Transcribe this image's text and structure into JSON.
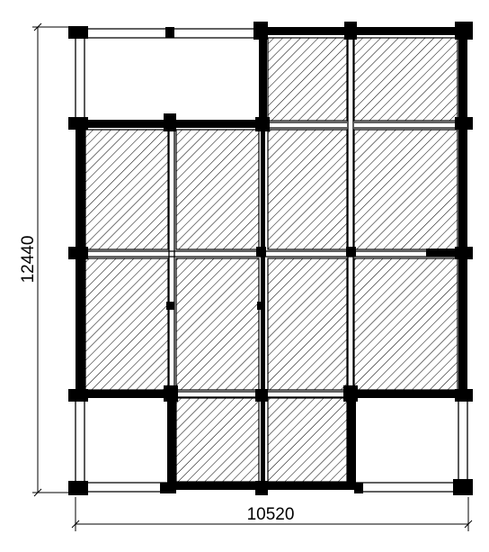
{
  "drawing": {
    "type": "floor-plan",
    "fill_pattern": "diagonal-hatch",
    "colors": {
      "line": "#000000",
      "background": "#ffffff"
    }
  },
  "dimensions": {
    "width_label": "10520",
    "height_label": "12440"
  }
}
